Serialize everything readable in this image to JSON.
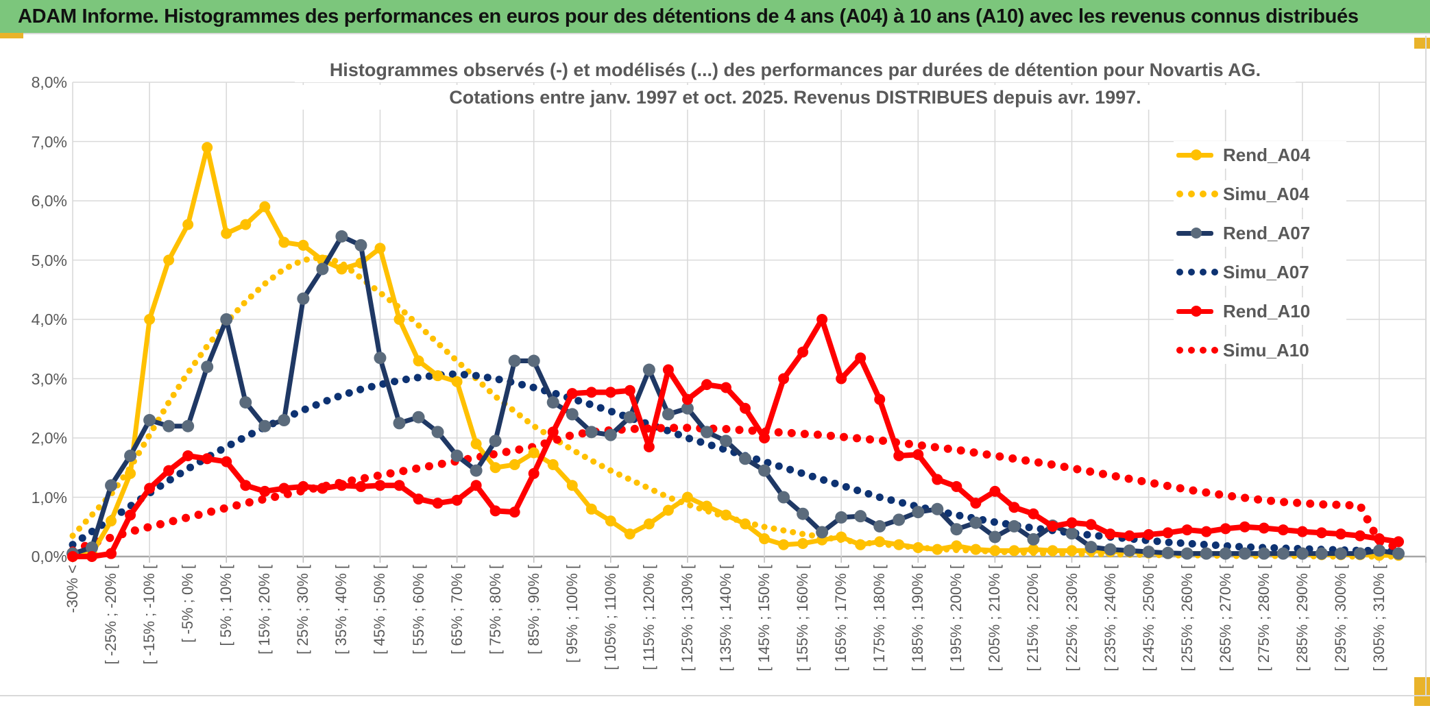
{
  "header": {
    "title": "ADAM Informe. Histogrammes des performances en euros pour des détentions de 4 ans (A04) à 10 ans (A10) avec les revenus connus distribués"
  },
  "chart_data": {
    "type": "line",
    "title_line1": "Histogrammes observés (-) et modélisés (...) des performances par durées de détention pour Novartis AG.",
    "title_line2": "Cotations entre janv. 1997 et oct. 2025. Revenus DISTRIBUES depuis avr. 1997.",
    "ylim": [
      0,
      8
    ],
    "y_tick_labels": [
      "0,0%",
      "1,0%",
      "2,0%",
      "3,0%",
      "4,0%",
      "5,0%",
      "6,0%",
      "7,0%",
      "8,0%"
    ],
    "grid": true,
    "legend_position": "right",
    "bins_total": 70,
    "x_labels_every_other_bin": true,
    "x_tick_labels": [
      "-30% <",
      "[ -25% ; -20% [",
      "[ -15% ; -10% [",
      "[ -5% ; 0% [",
      "[ 5% ; 10% [",
      "[ 15% ; 20% [",
      "[ 25% ; 30% [",
      "[ 35% ; 40% [",
      "[ 45% ; 50% [",
      "[ 55% ; 60% [",
      "[ 65% ; 70% [",
      "[ 75% ; 80% [",
      "[ 85% ; 90% [",
      "[ 95% ; 100% [",
      "[ 105% ; 110% [",
      "[ 115% ; 120% [",
      "[ 125% ; 130% [",
      "[ 135% ; 140% [",
      "[ 145% ; 150% [",
      "[ 155% ; 160% [",
      "[ 165% ; 170% [",
      "[ 175% ; 180% [",
      "[ 185% ; 190% [",
      "[ 195% ; 200% [",
      "[ 205% ; 210% [",
      "[ 215% ; 220% [",
      "[ 225% ; 230% [",
      "[ 235% ; 240% [",
      "[ 245% ; 250% [",
      "[ 255% ; 260% [",
      "[ 265% ; 270% [",
      "[ 275% ; 280% [",
      "[ 285% ; 290% [",
      "[ 295% ; 300% [",
      "[ 305% ; 310% ["
    ],
    "series": [
      {
        "name": "Rend_A04",
        "style": "solid",
        "color": "#FFC000",
        "marker_color": "#FFC000",
        "line_width": 7,
        "values": [
          0,
          0.05,
          0.6,
          1.4,
          4,
          5,
          5.6,
          6.9,
          5.45,
          5.6,
          5.9,
          5.3,
          5.25,
          5,
          4.85,
          4.95,
          5.2,
          4,
          3.3,
          3.05,
          2.95,
          1.9,
          1.5,
          1.55,
          1.75,
          1.55,
          1.2,
          0.8,
          0.6,
          0.38,
          0.55,
          0.78,
          1,
          0.85,
          0.7,
          0.55,
          0.3,
          0.2,
          0.22,
          0.28,
          0.33,
          0.2,
          0.25,
          0.2,
          0.15,
          0.12,
          0.18,
          0.12,
          0.1,
          0.1,
          0.12,
          0.1,
          0.1,
          0.1,
          0.08,
          0.08,
          0.06,
          0.05,
          0.05,
          0.05,
          0.05,
          0.04,
          0.04,
          0.05,
          0.04,
          0.03,
          0.03,
          0.03,
          0.02,
          0.02
        ]
      },
      {
        "name": "Simu_A04",
        "style": "dotted",
        "color": "#FFC000",
        "line_width": 9,
        "dot_gap": 14,
        "values": [
          0.35,
          0.7,
          1.05,
          1.5,
          2.05,
          2.6,
          3.1,
          3.55,
          3.95,
          4.3,
          4.6,
          4.85,
          5,
          5.05,
          4.95,
          4.7,
          4.45,
          4.2,
          3.9,
          3.6,
          3.3,
          3,
          2.7,
          2.45,
          2.2,
          2,
          1.8,
          1.62,
          1.45,
          1.3,
          1.15,
          1,
          0.88,
          0.77,
          0.67,
          0.58,
          0.5,
          0.44,
          0.38,
          0.33,
          0.28,
          0.24,
          0.21,
          0.18,
          0.15,
          0.13,
          0.11,
          0.1,
          0.08,
          0.07,
          0.06,
          0.05,
          0.05,
          0.04,
          0.04,
          0.03,
          0.03,
          0.02,
          0.02,
          0.02,
          0.01,
          0.01,
          0.01,
          0.01,
          0.01,
          0,
          0,
          0,
          0,
          0
        ]
      },
      {
        "name": "Rend_A07",
        "style": "solid",
        "color": "#1F3864",
        "marker_color": "#5B6B7C",
        "line_width": 7,
        "values": [
          0.05,
          0.15,
          1.2,
          1.7,
          2.3,
          2.2,
          2.2,
          3.2,
          4,
          2.6,
          2.2,
          2.3,
          4.35,
          4.85,
          5.4,
          5.25,
          3.35,
          2.25,
          2.35,
          2.1,
          1.7,
          1.45,
          1.95,
          3.3,
          3.3,
          2.6,
          2.4,
          2.1,
          2.05,
          2.35,
          3.15,
          2.4,
          2.5,
          2.1,
          1.95,
          1.65,
          1.45,
          1,
          0.72,
          0.41,
          0.66,
          0.68,
          0.51,
          0.62,
          0.75,
          0.8,
          0.46,
          0.57,
          0.33,
          0.51,
          0.29,
          0.52,
          0.39,
          0.16,
          0.12,
          0.1,
          0.08,
          0.06,
          0.05,
          0.05,
          0.05,
          0.05,
          0.05,
          0.05,
          0.05,
          0.05,
          0.05,
          0.05,
          0.1,
          0.05
        ]
      },
      {
        "name": "Simu_A07",
        "style": "dotted",
        "color": "#0D3272",
        "line_width": 11,
        "dot_gap": 17,
        "values": [
          0.2,
          0.42,
          0.63,
          0.85,
          1.07,
          1.28,
          1.48,
          1.67,
          1.85,
          2.02,
          2.18,
          2.33,
          2.47,
          2.6,
          2.72,
          2.82,
          2.9,
          2.97,
          3.02,
          3.06,
          3.08,
          3.05,
          3,
          2.93,
          2.85,
          2.76,
          2.66,
          2.56,
          2.45,
          2.34,
          2.23,
          2.12,
          2,
          1.9,
          1.8,
          1.7,
          1.6,
          1.5,
          1.4,
          1.3,
          1.2,
          1.1,
          1,
          0.92,
          0.84,
          0.77,
          0.7,
          0.64,
          0.58,
          0.53,
          0.48,
          0.44,
          0.4,
          0.36,
          0.33,
          0.3,
          0.27,
          0.24,
          0.22,
          0.2,
          0.18,
          0.16,
          0.15,
          0.14,
          0.13,
          0.12,
          0.11,
          0.1,
          0.1,
          0.09
        ]
      },
      {
        "name": "Rend_A10",
        "style": "solid",
        "color": "#FF0000",
        "marker_color": "#FF0000",
        "line_width": 8,
        "values": [
          0,
          0,
          0.05,
          0.7,
          1.15,
          1.45,
          1.7,
          1.65,
          1.6,
          1.2,
          1.1,
          1.15,
          1.18,
          1.15,
          1.2,
          1.18,
          1.2,
          1.2,
          0.97,
          0.9,
          0.95,
          1.2,
          0.77,
          0.75,
          1.4,
          2.1,
          2.75,
          2.77,
          2.77,
          2.8,
          1.85,
          3.15,
          2.65,
          2.9,
          2.85,
          2.5,
          2,
          3,
          3.45,
          4,
          3,
          3.35,
          2.65,
          1.7,
          1.72,
          1.3,
          1.18,
          0.9,
          1.1,
          0.83,
          0.72,
          0.51,
          0.57,
          0.54,
          0.38,
          0.35,
          0.37,
          0.4,
          0.45,
          0.42,
          0.47,
          0.5,
          0.48,
          0.45,
          0.42,
          0.4,
          0.38,
          0.35,
          0.3,
          0.25
        ]
      },
      {
        "name": "Simu_A10",
        "style": "dotted",
        "color": "#FF0000",
        "line_width": 12,
        "dot_gap": 19,
        "values": [
          0.1,
          0.22,
          0.32,
          0.42,
          0.5,
          0.58,
          0.66,
          0.74,
          0.82,
          0.9,
          0.97,
          1.04,
          1.11,
          1.18,
          1.25,
          1.31,
          1.37,
          1.43,
          1.49,
          1.55,
          1.61,
          1.67,
          1.73,
          1.79,
          1.85,
          1.95,
          2.05,
          2.1,
          2.13,
          2.15,
          2.16,
          2.17,
          2.17,
          2.16,
          2.15,
          2.13,
          2.11,
          2.09,
          2.07,
          2.05,
          2.02,
          1.99,
          1.96,
          1.92,
          1.88,
          1.84,
          1.8,
          1.75,
          1.7,
          1.65,
          1.6,
          1.55,
          1.49,
          1.43,
          1.37,
          1.31,
          1.25,
          1.19,
          1.13,
          1.08,
          1.03,
          0.99,
          0.95,
          0.92,
          0.9,
          0.88,
          0.87,
          0.86,
          0.25,
          0.15
        ]
      }
    ]
  },
  "colors": {
    "header_bg": "#7CC67C",
    "accent_gold": "#E9B32A",
    "grid": "#d9d9d9",
    "axis": "#a6a6a6",
    "tick": "#bfbfbf",
    "chart_text": "#595959"
  }
}
